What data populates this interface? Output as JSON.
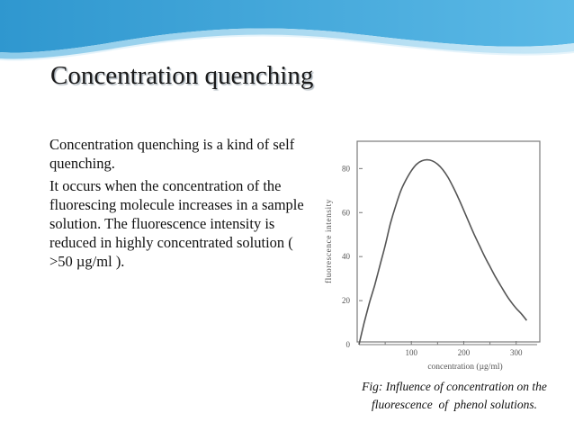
{
  "slide": {
    "title": "Concentration quenching",
    "paragraphs": [
      "Concentration quenching is a kind of self quenching.",
      "It occurs when the concentration of the fluorescing molecule increases in a sample solution. The fluorescence intensity is reduced in highly concentrated solution ( >50 µg/ml )."
    ],
    "caption_lines": [
      "Fig: Influence of concentration on the",
      "fluorescence  of  phenol solutions."
    ],
    "colors": {
      "wave_dark": "#3aa3d6",
      "wave_light": "#9fd3ee",
      "title_shadow": "#aeb7bf"
    }
  },
  "chart_data": {
    "type": "line",
    "xlabel": "concentration  (µg/ml)",
    "ylabel": "fluorescence   intensity",
    "xlim": [
      0,
      340
    ],
    "ylim": [
      0,
      92
    ],
    "x_ticks": [
      100,
      200,
      300
    ],
    "y_ticks": [
      0,
      20,
      40,
      60,
      80
    ],
    "grid": false,
    "series": [
      {
        "x": [
          0,
          10,
          20,
          30,
          40,
          50,
          60,
          70,
          80,
          90,
          100,
          110,
          120,
          130,
          140,
          150,
          160,
          170,
          180,
          190,
          200,
          210,
          220,
          230,
          240,
          250,
          260,
          270,
          280,
          290,
          300,
          310,
          320
        ],
        "y": [
          0,
          10,
          19,
          27,
          36,
          45,
          55,
          63,
          70,
          75,
          79,
          82,
          83.5,
          84,
          83.5,
          82,
          79.5,
          76,
          71.5,
          66.5,
          61,
          55.5,
          50,
          45,
          40,
          35.5,
          31,
          27,
          23,
          19.5,
          16.5,
          14,
          11
        ]
      }
    ]
  }
}
